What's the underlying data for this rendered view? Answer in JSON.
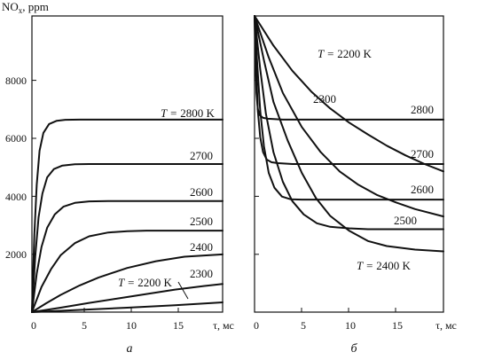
{
  "chart_data": [
    {
      "type": "line",
      "panel_label": "a",
      "ylabel": "NO",
      "ylabel_sub": "x",
      "ylabel_unit": ", ppm",
      "xlabel": "τ, мс",
      "xlim": [
        0,
        20
      ],
      "ylim": [
        0,
        10000
      ],
      "x_ticks": [
        "0",
        "5",
        "10",
        "15"
      ],
      "y_ticks": [
        "2000",
        "4000",
        "6000",
        "8000"
      ],
      "series": [
        {
          "name": "2800",
          "label_prefix": "T = ",
          "label_suffix": " K",
          "values": [
            [
              0,
              0
            ],
            [
              0.25,
              2600
            ],
            [
              0.5,
              4300
            ],
            [
              0.8,
              5450
            ],
            [
              1.2,
              6050
            ],
            [
              1.8,
              6350
            ],
            [
              2.6,
              6460
            ],
            [
              3.5,
              6495
            ],
            [
              5,
              6500
            ],
            [
              20,
              6500
            ]
          ]
        },
        {
          "name": "2700",
          "values": [
            [
              0,
              0
            ],
            [
              0.35,
              1900
            ],
            [
              0.7,
              3200
            ],
            [
              1.1,
              4000
            ],
            [
              1.6,
              4550
            ],
            [
              2.3,
              4830
            ],
            [
              3.2,
              4950
            ],
            [
              4.5,
              4995
            ],
            [
              6,
              5000
            ],
            [
              20,
              5000
            ]
          ]
        },
        {
          "name": "2600",
          "values": [
            [
              0,
              0
            ],
            [
              0.5,
              1300
            ],
            [
              1,
              2200
            ],
            [
              1.6,
              2850
            ],
            [
              2.4,
              3300
            ],
            [
              3.3,
              3560
            ],
            [
              4.5,
              3690
            ],
            [
              6,
              3740
            ],
            [
              8,
              3750
            ],
            [
              20,
              3750
            ]
          ]
        },
        {
          "name": "2500",
          "values": [
            [
              0,
              0
            ],
            [
              1,
              850
            ],
            [
              2,
              1450
            ],
            [
              3,
              1920
            ],
            [
              4.5,
              2330
            ],
            [
              6,
              2560
            ],
            [
              8,
              2690
            ],
            [
              10,
              2730
            ],
            [
              12,
              2750
            ],
            [
              20,
              2750
            ]
          ]
        },
        {
          "name": "2400",
          "values": [
            [
              0,
              0
            ],
            [
              1.5,
              300
            ],
            [
              3,
              580
            ],
            [
              5,
              900
            ],
            [
              7,
              1170
            ],
            [
              10,
              1490
            ],
            [
              13,
              1720
            ],
            [
              16,
              1870
            ],
            [
              20,
              1950
            ]
          ]
        },
        {
          "name": "2300",
          "values": [
            [
              0,
              0
            ],
            [
              3,
              150
            ],
            [
              6,
              310
            ],
            [
              9,
              460
            ],
            [
              12,
              610
            ],
            [
              15,
              760
            ],
            [
              18,
              880
            ],
            [
              20,
              950
            ]
          ]
        },
        {
          "name": "2200",
          "label_prefix": "T = ",
          "label_suffix": " K",
          "values": [
            [
              0,
              0
            ],
            [
              5,
              75
            ],
            [
              10,
              150
            ],
            [
              15,
              235
            ],
            [
              20,
              330
            ]
          ]
        }
      ]
    },
    {
      "type": "line",
      "panel_label": "б",
      "xlabel": "τ, мс",
      "xlim": [
        0,
        20
      ],
      "ylim": [
        0,
        10000
      ],
      "x_ticks": [
        "0",
        "5",
        "10",
        "15"
      ],
      "series": [
        {
          "name": "2200",
          "label_prefix": "T = ",
          "label_suffix": " K",
          "values": [
            [
              0,
              10000
            ],
            [
              2,
              9000
            ],
            [
              4,
              8150
            ],
            [
              6,
              7450
            ],
            [
              8,
              6880
            ],
            [
              10,
              6400
            ],
            [
              12,
              6000
            ],
            [
              14,
              5620
            ],
            [
              16,
              5290
            ],
            [
              18,
              5000
            ],
            [
              20,
              4750
            ]
          ]
        },
        {
          "name": "2300",
          "values": [
            [
              0,
              10000
            ],
            [
              1.5,
              8600
            ],
            [
              3,
              7400
            ],
            [
              5,
              6250
            ],
            [
              7,
              5400
            ],
            [
              9,
              4750
            ],
            [
              11,
              4300
            ],
            [
              13,
              3950
            ],
            [
              15,
              3700
            ],
            [
              17,
              3480
            ],
            [
              20,
              3230
            ]
          ]
        },
        {
          "name": "2400",
          "label_prefix": "T = ",
          "label_suffix": " K",
          "values": [
            [
              0,
              10000
            ],
            [
              1,
              8500
            ],
            [
              2,
              7100
            ],
            [
              3.5,
              5800
            ],
            [
              5,
              4700
            ],
            [
              6.5,
              3850
            ],
            [
              8,
              3250
            ],
            [
              10,
              2750
            ],
            [
              12,
              2400
            ],
            [
              14,
              2230
            ],
            [
              17,
              2110
            ],
            [
              20,
              2050
            ]
          ]
        },
        {
          "name": "2500",
          "values": [
            [
              0,
              10000
            ],
            [
              0.6,
              8200
            ],
            [
              1.2,
              6700
            ],
            [
              2,
              5400
            ],
            [
              3,
              4400
            ],
            [
              4,
              3750
            ],
            [
              5.2,
              3300
            ],
            [
              6.6,
              3000
            ],
            [
              8,
              2880
            ],
            [
              10,
              2830
            ],
            [
              12,
              2800
            ],
            [
              20,
              2800
            ]
          ]
        },
        {
          "name": "2600",
          "values": [
            [
              0,
              10000
            ],
            [
              0.3,
              8300
            ],
            [
              0.6,
              6800
            ],
            [
              1,
              5600
            ],
            [
              1.5,
              4700
            ],
            [
              2.1,
              4200
            ],
            [
              2.9,
              3900
            ],
            [
              3.8,
              3810
            ],
            [
              5,
              3800
            ],
            [
              20,
              3800
            ]
          ]
        },
        {
          "name": "2700",
          "values": [
            [
              0,
              10000
            ],
            [
              0.15,
              8400
            ],
            [
              0.35,
              6800
            ],
            [
              0.6,
              5900
            ],
            [
              0.9,
              5400
            ],
            [
              1.3,
              5150
            ],
            [
              1.8,
              5060
            ],
            [
              2.5,
              5030
            ],
            [
              4,
              5000
            ],
            [
              20,
              5000
            ]
          ]
        },
        {
          "name": "2800",
          "values": [
            [
              0,
              10000
            ],
            [
              0.08,
              8600
            ],
            [
              0.2,
              7400
            ],
            [
              0.35,
              6850
            ],
            [
              0.55,
              6650
            ],
            [
              0.9,
              6560
            ],
            [
              1.4,
              6530
            ],
            [
              3,
              6500
            ],
            [
              20,
              6500
            ]
          ]
        }
      ]
    }
  ]
}
